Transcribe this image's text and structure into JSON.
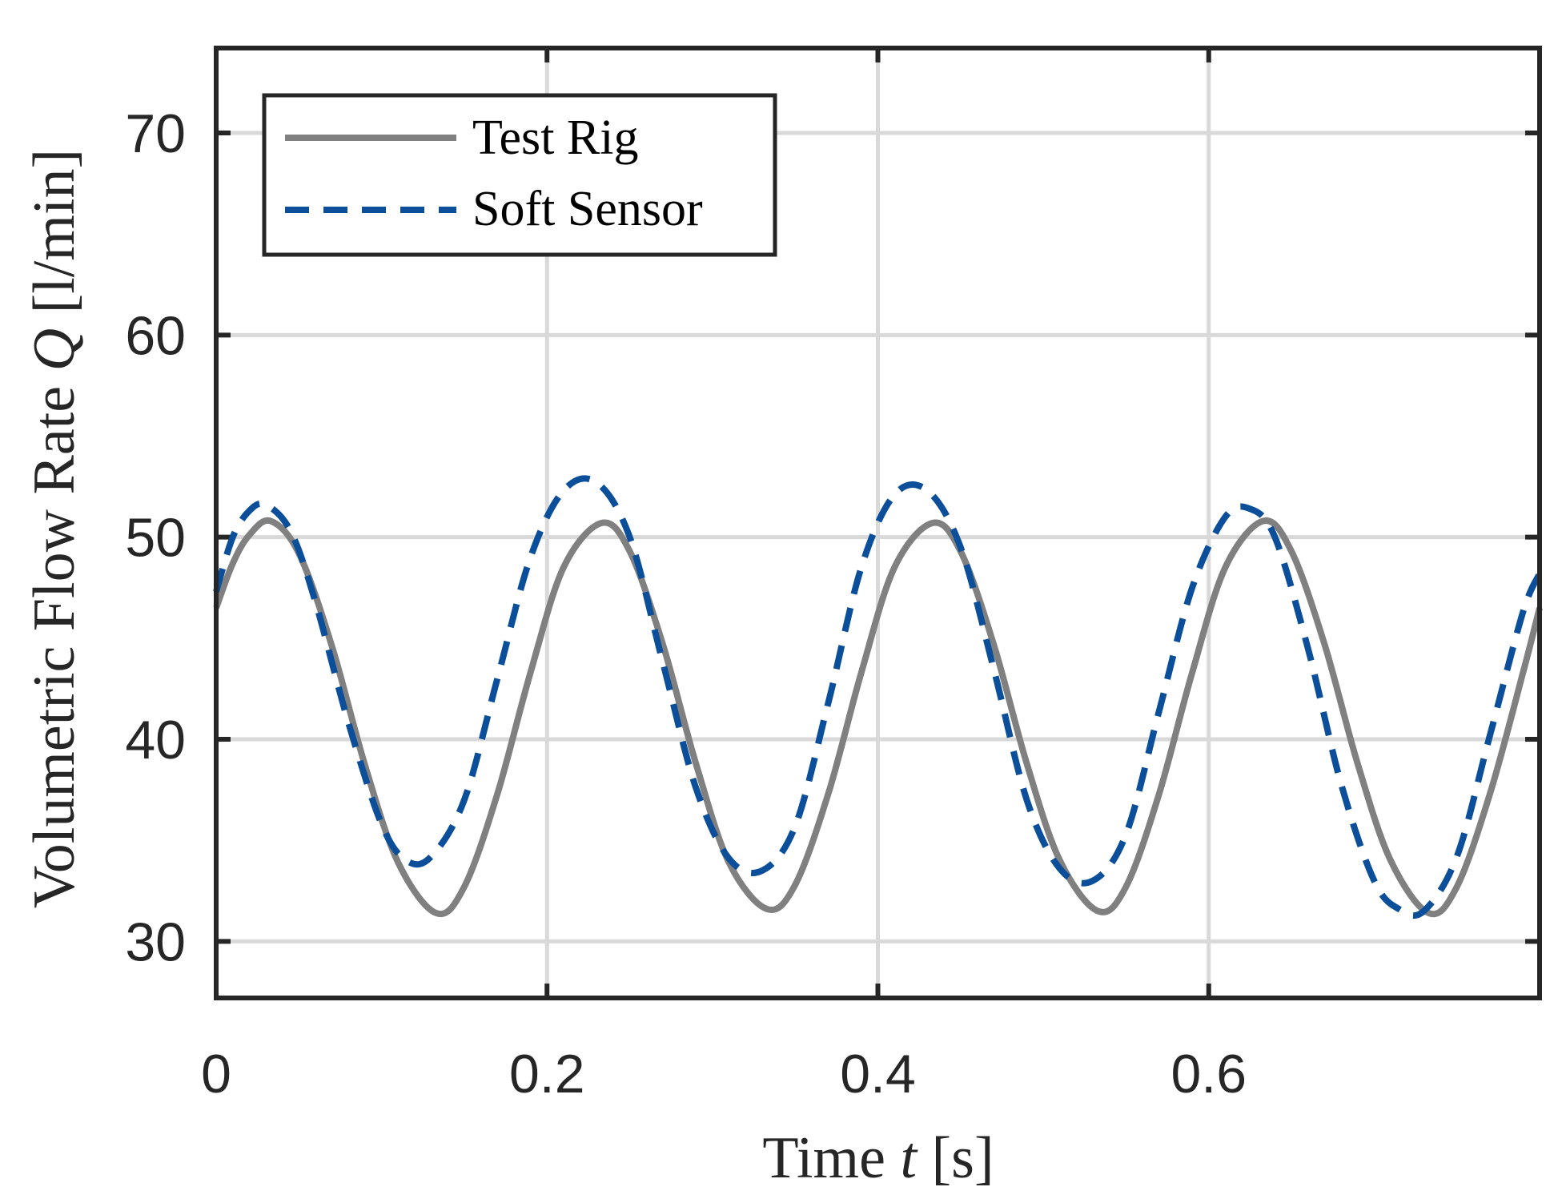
{
  "chart_data": {
    "type": "line",
    "title": "",
    "xlabel": {
      "prefix": "Time ",
      "symbol": "t",
      "suffix": " [s]"
    },
    "ylabel": {
      "prefix": "Volumetric Flow Rate ",
      "symbol": "Q",
      "suffix": " [l/min]"
    },
    "xlim": [
      0,
      0.8
    ],
    "ylim": [
      27.2,
      74.2
    ],
    "xticks": [
      0,
      0.2,
      0.4,
      0.6
    ],
    "xtick_labels": [
      "0",
      "0.2",
      "0.4",
      "0.6"
    ],
    "yticks": [
      30,
      40,
      50,
      60,
      70
    ],
    "ytick_labels": [
      "30",
      "40",
      "50",
      "60",
      "70"
    ],
    "grid": true,
    "legend_position": "top-left",
    "series": [
      {
        "name": "Test Rig",
        "color": "#808080",
        "style": "solid",
        "x": [
          0,
          0.01,
          0.02,
          0.033,
          0.05,
          0.07,
          0.09,
          0.11,
          0.133,
          0.15,
          0.17,
          0.19,
          0.21,
          0.233,
          0.25,
          0.27,
          0.29,
          0.31,
          0.333,
          0.35,
          0.37,
          0.39,
          0.41,
          0.433,
          0.45,
          0.47,
          0.49,
          0.51,
          0.533,
          0.55,
          0.57,
          0.59,
          0.61,
          0.633,
          0.65,
          0.67,
          0.69,
          0.71,
          0.733,
          0.75,
          0.77,
          0.79,
          0.8
        ],
        "values": [
          46.5,
          48.7,
          50.1,
          50.8,
          49.2,
          44.6,
          38.7,
          33.9,
          31.4,
          32.7,
          37.3,
          43.3,
          48.5,
          50.7,
          49.3,
          44.7,
          38.8,
          33.9,
          31.6,
          32.8,
          37.3,
          43.3,
          48.5,
          50.7,
          49.3,
          44.7,
          38.8,
          34.0,
          31.5,
          32.7,
          37.3,
          43.3,
          48.5,
          50.8,
          49.3,
          44.7,
          38.8,
          34.0,
          31.4,
          32.7,
          37.3,
          43.3,
          46.5
        ]
      },
      {
        "name": "Soft Sensor",
        "color": "#0b4f9a",
        "style": "dashed",
        "x": [
          0,
          0.01,
          0.02,
          0.03,
          0.045,
          0.06,
          0.08,
          0.1,
          0.115,
          0.13,
          0.15,
          0.17,
          0.19,
          0.21,
          0.23,
          0.25,
          0.27,
          0.29,
          0.31,
          0.33,
          0.35,
          0.37,
          0.39,
          0.41,
          0.43,
          0.45,
          0.47,
          0.49,
          0.51,
          0.53,
          0.55,
          0.57,
          0.59,
          0.61,
          0.625,
          0.64,
          0.66,
          0.68,
          0.7,
          0.715,
          0.73,
          0.75,
          0.77,
          0.79,
          0.8
        ],
        "values": [
          47.3,
          50.0,
          51.3,
          51.6,
          50.3,
          46.8,
          40.8,
          35.8,
          34.0,
          34.2,
          37.0,
          43.0,
          49.0,
          52.3,
          52.7,
          50.0,
          43.8,
          37.6,
          34.1,
          33.5,
          35.7,
          41.8,
          48.5,
          52.1,
          52.3,
          49.5,
          43.5,
          37.0,
          33.6,
          33.0,
          35.3,
          41.4,
          47.5,
          51.0,
          51.4,
          50.0,
          44.5,
          37.8,
          33.0,
          31.6,
          31.5,
          34.2,
          40.2,
          46.3,
          48.2
        ]
      }
    ]
  }
}
